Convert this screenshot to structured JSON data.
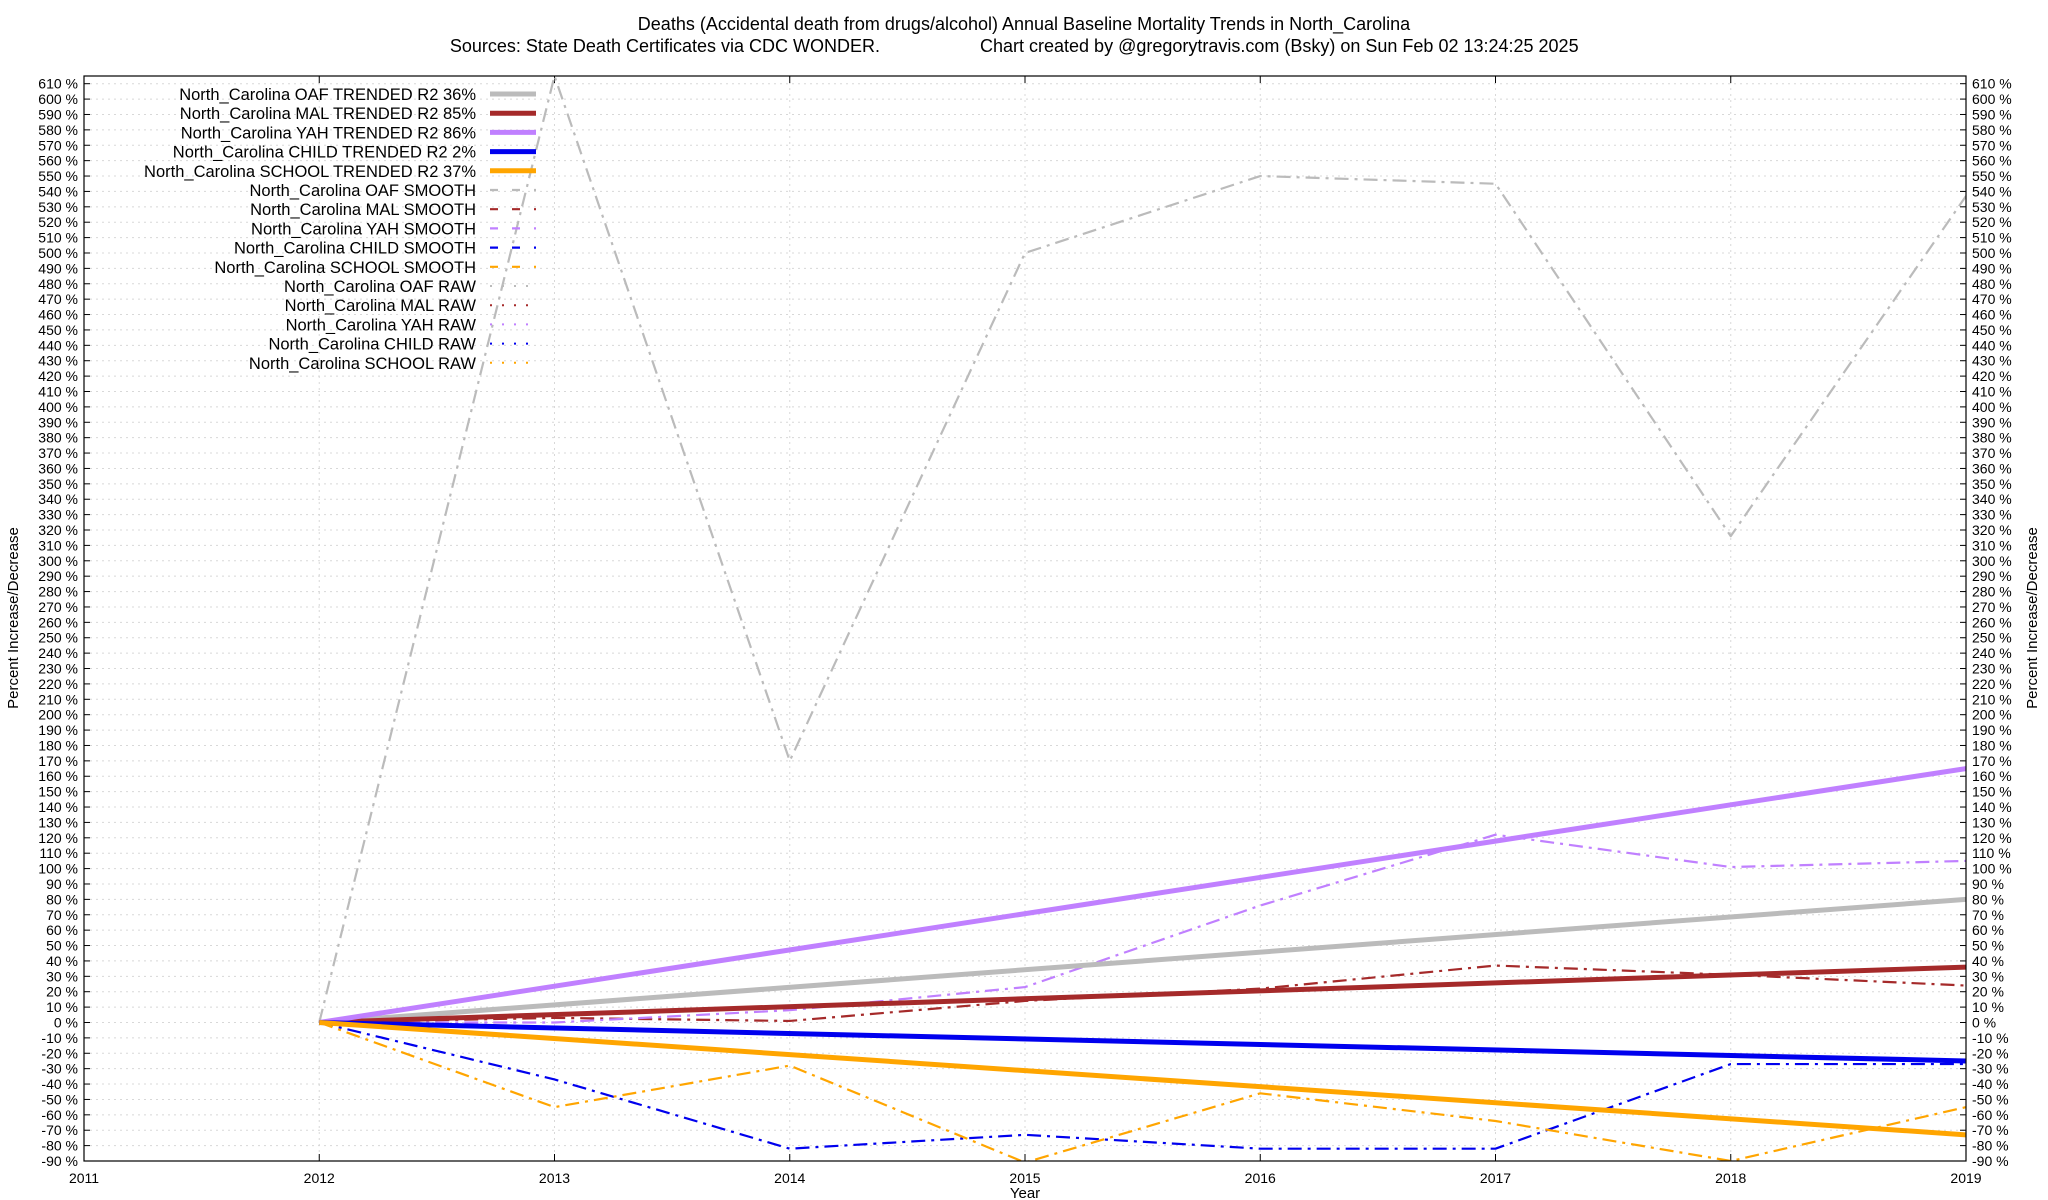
{
  "chart_data": {
    "type": "line",
    "title": "Deaths (Accidental death from drugs/alcohol)  Annual Baseline Mortality Trends in North_Carolina",
    "subtitle_left": "Sources: State Death Certificates via CDC WONDER.",
    "subtitle_right": "Chart created by @gregorytravis.com (Bsky) on Sun Feb 02 13:24:25 2025",
    "xlabel": "Year",
    "ylabel": "Percent Increase/Decrease",
    "xlim": [
      2011,
      2019
    ],
    "ylim": [
      -90,
      615
    ],
    "x_ticks": [
      2011,
      2012,
      2013,
      2014,
      2015,
      2016,
      2017,
      2018,
      2019
    ],
    "y_tick_start": -90,
    "y_tick_end": 610,
    "y_tick_step": 10,
    "y_tick_suffix": " %",
    "grid": true,
    "legend_position": "top-left",
    "series": [
      {
        "name": "North_Carolina OAF TRENDED R2  36%",
        "style": "trend",
        "color": "#bbbbbb",
        "x": [
          2012,
          2019
        ],
        "y": [
          0,
          80
        ]
      },
      {
        "name": "North_Carolina MAL TRENDED R2  85%",
        "style": "trend",
        "color": "#a52a2a",
        "x": [
          2012,
          2019
        ],
        "y": [
          0,
          36
        ]
      },
      {
        "name": "North_Carolina YAH TRENDED R2  86%",
        "style": "trend",
        "color": "#c080ff",
        "x": [
          2012,
          2019
        ],
        "y": [
          0,
          165
        ]
      },
      {
        "name": "North_Carolina CHILD TRENDED R2   2%",
        "style": "trend",
        "color": "#0000ee",
        "x": [
          2012,
          2019
        ],
        "y": [
          0,
          -25
        ]
      },
      {
        "name": "North_Carolina SCHOOL TRENDED R2  37%",
        "style": "trend",
        "color": "#ffa500",
        "x": [
          2012,
          2019
        ],
        "y": [
          0,
          -73
        ]
      },
      {
        "name": "North_Carolina OAF SMOOTH",
        "style": "smooth",
        "color": "#bbbbbb",
        "x": [
          2012,
          2013,
          2014,
          2015,
          2016,
          2017,
          2018,
          2019
        ],
        "y": [
          0,
          615,
          170,
          500,
          550,
          545,
          316,
          537
        ]
      },
      {
        "name": "North_Carolina MAL SMOOTH",
        "style": "smooth",
        "color": "#a52a2a",
        "x": [
          2012,
          2013,
          2014,
          2015,
          2016,
          2017,
          2018,
          2019
        ],
        "y": [
          0,
          3,
          1,
          14,
          22,
          37,
          31,
          24
        ]
      },
      {
        "name": "North_Carolina YAH SMOOTH",
        "style": "smooth",
        "color": "#c080ff",
        "x": [
          2012,
          2013,
          2014,
          2015,
          2016,
          2017,
          2018,
          2019
        ],
        "y": [
          0,
          0,
          8,
          23,
          76,
          122,
          101,
          105
        ]
      },
      {
        "name": "North_Carolina CHILD SMOOTH",
        "style": "smooth",
        "color": "#0000ee",
        "x": [
          2012,
          2013,
          2014,
          2015,
          2016,
          2017,
          2018,
          2019
        ],
        "y": [
          0,
          -37,
          -82,
          -73,
          -82,
          -82,
          -27,
          -27
        ]
      },
      {
        "name": "North_Carolina SCHOOL SMOOTH",
        "style": "smooth",
        "color": "#ffa500",
        "x": [
          2012,
          2013,
          2014,
          2015,
          2016,
          2017,
          2018,
          2019
        ],
        "y": [
          0,
          -55,
          -28,
          -91,
          -46,
          -64,
          -90,
          -55
        ]
      },
      {
        "name": "North_Carolina OAF RAW",
        "style": "raw",
        "color": "#bbbbbb",
        "x": [],
        "y": []
      },
      {
        "name": "North_Carolina MAL RAW",
        "style": "raw",
        "color": "#a52a2a",
        "x": [],
        "y": []
      },
      {
        "name": "North_Carolina YAH RAW",
        "style": "raw",
        "color": "#c080ff",
        "x": [],
        "y": []
      },
      {
        "name": "North_Carolina CHILD RAW",
        "style": "raw",
        "color": "#0000ee",
        "x": [],
        "y": []
      },
      {
        "name": "North_Carolina SCHOOL RAW",
        "style": "raw",
        "color": "#ffa500",
        "x": [],
        "y": []
      }
    ]
  }
}
